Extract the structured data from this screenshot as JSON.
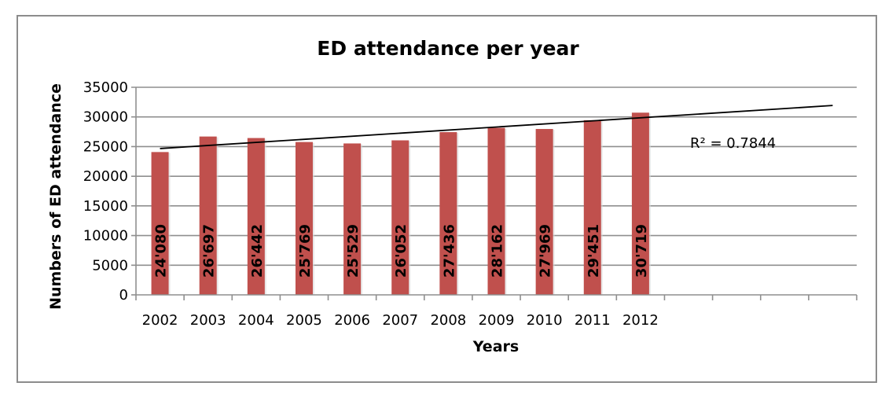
{
  "chart_data": {
    "type": "bar",
    "title": "ED attendance per year",
    "xlabel": "Years",
    "ylabel": "Numbers of ED attendance",
    "categories": [
      "2002",
      "2003",
      "2004",
      "2005",
      "2006",
      "2007",
      "2008",
      "2009",
      "2010",
      "2011",
      "2012"
    ],
    "category_slots": 15,
    "series": [
      {
        "name": "ED attendance",
        "values": [
          24080,
          26697,
          26442,
          25769,
          25529,
          26052,
          27436,
          28162,
          27969,
          29451,
          30719
        ],
        "labels": [
          "24'080",
          "26'697",
          "26'442",
          "25'769",
          "25'529",
          "26'052",
          "27'436",
          "28'162",
          "27'969",
          "29'451",
          "30'719"
        ],
        "color": "#c0504d"
      }
    ],
    "trendline": {
      "type": "linear",
      "start": {
        "slot": 1,
        "value": 24670
      },
      "end": {
        "slot": 15,
        "value": 31930
      },
      "r_squared_label": "R² = 0.7844",
      "color": "#000000"
    },
    "ylim": [
      0,
      35000
    ],
    "yticks": [
      0,
      5000,
      10000,
      15000,
      20000,
      25000,
      30000,
      35000
    ],
    "ytick_labels": [
      "0",
      "5000",
      "10000",
      "15000",
      "20000",
      "25000",
      "30000",
      "35000"
    ],
    "grid": true,
    "legend": "none"
  }
}
